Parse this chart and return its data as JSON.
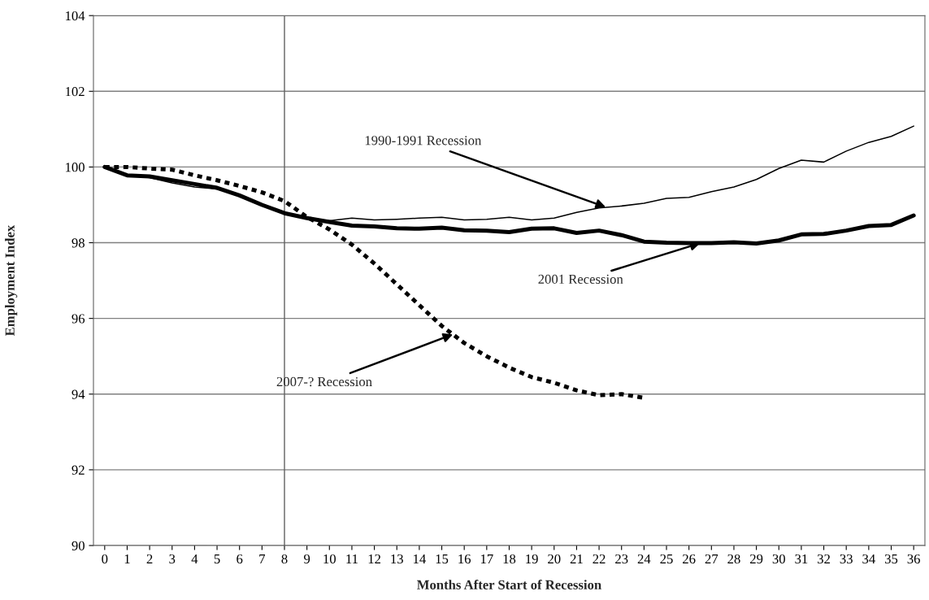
{
  "chart_data": {
    "type": "line",
    "xlabel": "Months After Start of Recession",
    "ylabel": "Employment Index",
    "x": [
      0,
      1,
      2,
      3,
      4,
      5,
      6,
      7,
      8,
      9,
      10,
      11,
      12,
      13,
      14,
      15,
      16,
      17,
      18,
      19,
      20,
      21,
      22,
      23,
      24,
      25,
      26,
      27,
      28,
      29,
      30,
      31,
      32,
      33,
      34,
      35,
      36
    ],
    "xlim": [
      -0.5,
      36.5
    ],
    "xticks": [
      0,
      1,
      2,
      3,
      4,
      5,
      6,
      7,
      8,
      9,
      10,
      11,
      12,
      13,
      14,
      15,
      16,
      17,
      18,
      19,
      20,
      21,
      22,
      23,
      24,
      25,
      26,
      27,
      28,
      29,
      30,
      31,
      32,
      33,
      34,
      35,
      36
    ],
    "ylim": [
      90,
      104
    ],
    "yticks": [
      90,
      92,
      94,
      96,
      98,
      100,
      102,
      104
    ],
    "grid": "y",
    "legend": false,
    "marker": "none",
    "series": [
      {
        "color": "#000000",
        "line_style": "solid",
        "values": [
          100,
          99.78,
          99.72,
          99.58,
          99.47,
          99.42,
          99.25,
          99.0,
          98.78,
          98.65,
          98.58,
          98.65,
          98.6,
          98.62,
          98.65,
          98.67,
          98.6,
          98.62,
          98.67,
          98.6,
          98.65,
          98.8,
          98.92,
          98.97,
          99.04,
          99.17,
          99.2,
          99.35,
          99.47,
          99.67,
          99.96,
          100.18,
          100.13,
          100.42,
          100.65,
          100.81,
          101.08
        ]
      },
      {
        "color": "#000000",
        "line_style": "solid",
        "values": [
          100,
          99.78,
          99.75,
          99.65,
          99.55,
          99.45,
          99.25,
          99.0,
          98.78,
          98.65,
          98.55,
          98.45,
          98.43,
          98.38,
          98.37,
          98.4,
          98.33,
          98.32,
          98.28,
          98.37,
          98.38,
          98.26,
          98.32,
          98.2,
          98.03,
          98.0,
          97.99,
          97.99,
          98.01,
          97.98,
          98.06,
          98.22,
          98.23,
          98.32,
          98.44,
          98.47,
          98.72
        ]
      },
      {
        "color": "#000000",
        "line_style": "dashed",
        "values": [
          100,
          100.0,
          99.96,
          99.93,
          99.78,
          99.65,
          99.5,
          99.33,
          99.1,
          98.68,
          98.35,
          97.95,
          97.45,
          96.9,
          96.35,
          95.8,
          95.35,
          95.0,
          94.7,
          94.45,
          94.3,
          94.1,
          93.97,
          94.0,
          93.9,
          null,
          null,
          null,
          null,
          null,
          null,
          null,
          null,
          null,
          null,
          null,
          null
        ]
      }
    ],
    "ref_lines": [
      {
        "axis": "x",
        "value": 8,
        "color": "#606060"
      }
    ],
    "annotations": [
      {
        "text": "1990-1991 Recession",
        "x": 22.3,
        "y": 98.94
      },
      {
        "text": "2001 Recession",
        "x": 26.5,
        "y": 97.99
      },
      {
        "text": "2007-? Recession",
        "x": 15.5,
        "y": 95.58
      }
    ]
  }
}
